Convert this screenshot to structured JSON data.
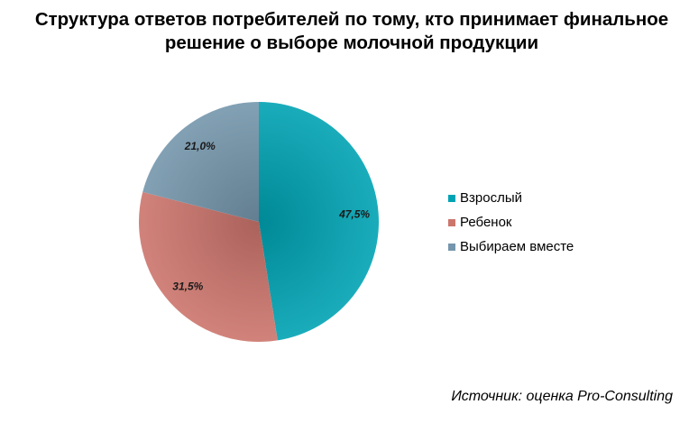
{
  "chart_data": {
    "type": "pie",
    "title": [
      "Структура ответов потребителей по тому, кто принимает финальное",
      "решение о выборе молочной продукции"
    ],
    "categories": [
      "Взрослый",
      "Ребенок",
      "Выбираем вместе"
    ],
    "values": [
      47.5,
      31.5,
      21.0
    ],
    "data_labels": [
      "47,5%",
      "31,5%",
      "21,0%"
    ],
    "colors": [
      "#00a3b3",
      "#cc756c",
      "#7596ac"
    ],
    "legend": "right"
  },
  "source": "Источник: оценка Pro-Consulting"
}
